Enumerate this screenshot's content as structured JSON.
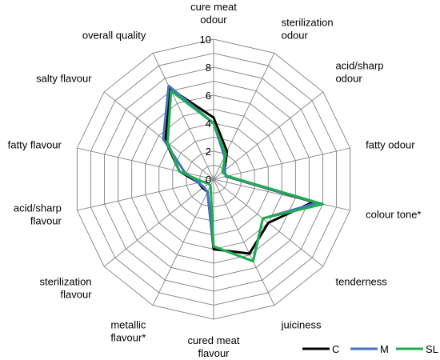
{
  "chart_data": {
    "type": "radar",
    "axes": [
      [
        "cure meat",
        "odour"
      ],
      [
        "sterilization",
        "odour"
      ],
      [
        "acid/sharp",
        "odour"
      ],
      [
        "fatty odour"
      ],
      [
        "colour tone*"
      ],
      [
        "tenderness"
      ],
      [
        "juiciness"
      ],
      [
        "cured meat",
        "flavour"
      ],
      [
        "metallic",
        "flavour*"
      ],
      [
        "sterilization",
        "flavour"
      ],
      [
        "acid/sharp",
        "flavour"
      ],
      [
        "fatty flavour"
      ],
      [
        "salty flavour"
      ],
      [
        "overall quality"
      ]
    ],
    "rlim": [
      0,
      10
    ],
    "ticks": [
      0,
      2,
      4,
      6,
      8,
      10
    ],
    "grid": true,
    "legend_position": "bottom-right",
    "series": [
      {
        "name": "C",
        "color": "#000000",
        "values": [
          4.4,
          2.2,
          1.0,
          0.9,
          7.3,
          5.0,
          5.9,
          5.0,
          1.0,
          1.0,
          1.1,
          2.5,
          4.4,
          7.2
        ]
      },
      {
        "name": "M",
        "color": "#4472c4",
        "values": [
          4.0,
          1.8,
          1.0,
          0.9,
          7.6,
          4.5,
          6.5,
          4.8,
          1.0,
          0.9,
          1.1,
          2.1,
          4.6,
          7.4
        ]
      },
      {
        "name": "SL",
        "color": "#1fad4e",
        "values": [
          4.0,
          2.0,
          0.8,
          1.0,
          8.0,
          4.5,
          6.5,
          4.8,
          0.5,
          0.5,
          0.8,
          2.5,
          4.2,
          7.0
        ]
      }
    ]
  }
}
